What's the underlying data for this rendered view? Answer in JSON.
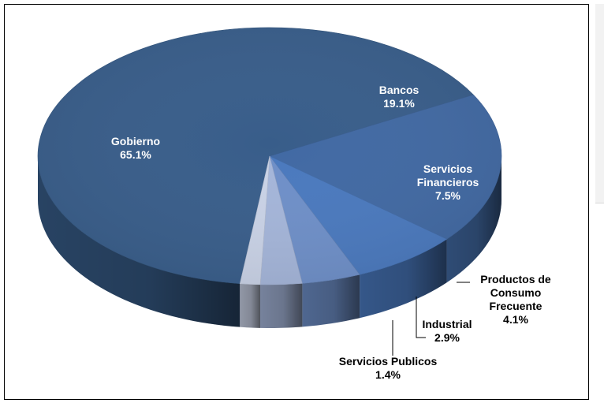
{
  "chart_data": {
    "type": "pie",
    "three_d": true,
    "title": "",
    "series": [
      {
        "slices": [
          {
            "label": "Gobierno",
            "value_label": "65.1%",
            "value": 65.1,
            "color": "#385D8A",
            "label_lines": [
              "Gobierno"
            ]
          },
          {
            "label": "Bancos",
            "value_label": "19.1%",
            "value": 19.1,
            "color": "#4169A3",
            "label_lines": [
              "Bancos"
            ]
          },
          {
            "label": "Servicios Financieros",
            "value_label": "7.5%",
            "value": 7.5,
            "color": "#4A79BE",
            "label_lines": [
              "Servicios",
              "Financieros"
            ]
          },
          {
            "label": "Productos de Consumo Frecuente",
            "value_label": "4.1%",
            "value": 4.1,
            "color": "#6E8FC8",
            "label_lines": [
              "Productos de",
              "Consumo",
              "Frecuente"
            ]
          },
          {
            "label": "Industrial",
            "value_label": "2.9%",
            "value": 2.9,
            "color": "#A4B5D9",
            "label_lines": [
              "Industrial"
            ]
          },
          {
            "label": "Servicios Publicos",
            "value_label": "1.4%",
            "value": 1.4,
            "color": "#C9D2E6",
            "label_lines": [
              "Servicios Publicos"
            ]
          }
        ]
      }
    ],
    "legend": "none",
    "data_labels": "category and percent"
  }
}
